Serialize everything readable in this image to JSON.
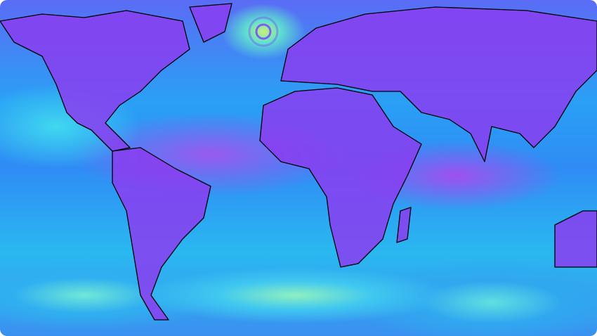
{
  "map": {
    "projection": "equirectangular",
    "extent": "global",
    "layer": "wind-speed-field",
    "colors": {
      "low": "#8a3df0",
      "mid": "#2aa0f5",
      "high": "#c8f07a",
      "coastline": "#000000"
    },
    "features": [
      "north-america",
      "greenland",
      "south-america",
      "africa",
      "eurasia",
      "australia",
      "madagascar",
      "cyclone-north-atlantic"
    ]
  }
}
